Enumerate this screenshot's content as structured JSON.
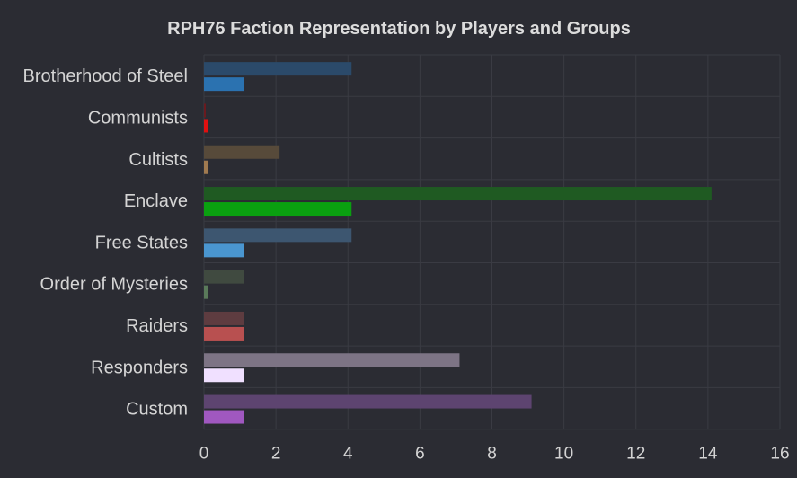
{
  "chart_data": {
    "type": "bar",
    "orientation": "horizontal",
    "title": "RPH76 Faction Representation by Players and Groups",
    "xlabel": "",
    "ylabel": "",
    "xlim": [
      0,
      16
    ],
    "x_ticks": [
      0,
      2,
      4,
      6,
      8,
      10,
      12,
      14,
      16
    ],
    "grid": true,
    "legend": "none",
    "categories": [
      "Brotherhood of Steel",
      "Communists",
      "Cultists",
      "Enclave",
      "Free States",
      "Order of Mysteries",
      "Raiders",
      "Responders",
      "Custom"
    ],
    "series": [
      {
        "values": [
          4.1,
          0.05,
          2.1,
          14.1,
          4.1,
          1.1,
          1.1,
          7.1,
          9.1
        ],
        "colors": [
          "#2b4a6a",
          "#6a1a1f",
          "#574a3a",
          "#1f5a22",
          "#3d5670",
          "#404a40",
          "#5e3c40",
          "#7d7485",
          "#5d4470"
        ]
      },
      {
        "values": [
          1.1,
          0.1,
          0.1,
          4.1,
          1.1,
          0.1,
          1.1,
          1.1,
          1.1
        ],
        "colors": [
          "#2b72b0",
          "#e01010",
          "#a07a50",
          "#0aa010",
          "#4a96d0",
          "#5a7a5a",
          "#b85050",
          "#f0e0ff",
          "#a058c0"
        ]
      }
    ]
  }
}
